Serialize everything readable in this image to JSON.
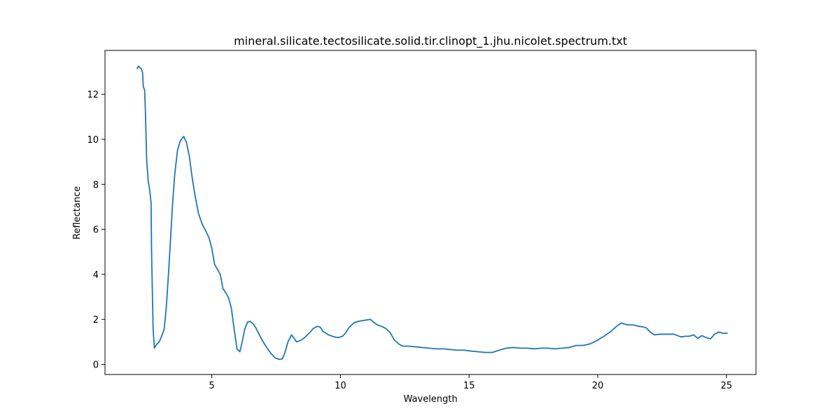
{
  "chart_data": {
    "type": "line",
    "title": "mineral.silicate.tectosilicate.solid.tir.clinopt_1.jhu.nicolet.spectrum.txt",
    "x_label": "Wavelength",
    "y_label": "Reflectance",
    "xlim": [
      0.85,
      26.15
    ],
    "ylim": [
      -0.45,
      13.95
    ],
    "xticks": [
      5,
      10,
      15,
      20,
      25
    ],
    "yticks": [
      0,
      2,
      4,
      6,
      8,
      10,
      12
    ],
    "grid": false,
    "x": [
      2.09,
      2.15,
      2.2,
      2.26,
      2.31,
      2.34,
      2.39,
      2.42,
      2.47,
      2.53,
      2.58,
      2.64,
      2.66,
      2.72,
      2.77,
      2.85,
      2.96,
      3.07,
      3.15,
      3.23,
      3.32,
      3.4,
      3.48,
      3.56,
      3.67,
      3.78,
      3.91,
      4.02,
      4.13,
      4.24,
      4.35,
      4.48,
      4.62,
      4.76,
      4.89,
      5.0,
      5.11,
      5.22,
      5.33,
      5.43,
      5.54,
      5.65,
      5.76,
      5.87,
      5.98,
      6.09,
      6.17,
      6.28,
      6.39,
      6.49,
      6.6,
      6.71,
      6.82,
      6.98,
      7.15,
      7.31,
      7.47,
      7.64,
      7.74,
      7.83,
      7.96,
      8.1,
      8.18,
      8.29,
      8.45,
      8.61,
      8.78,
      8.94,
      9.1,
      9.21,
      9.32,
      9.54,
      9.76,
      9.92,
      10.08,
      10.19,
      10.35,
      10.52,
      10.68,
      10.84,
      11.01,
      11.17,
      11.28,
      11.44,
      11.6,
      11.77,
      11.93,
      12.09,
      12.26,
      12.42,
      12.64,
      12.91,
      13.18,
      13.45,
      13.72,
      14.0,
      14.27,
      14.54,
      14.81,
      15.08,
      15.35,
      15.63,
      15.9,
      16.17,
      16.44,
      16.71,
      16.98,
      17.26,
      17.53,
      17.8,
      18.07,
      18.34,
      18.61,
      18.89,
      19.16,
      19.43,
      19.7,
      19.97,
      20.24,
      20.52,
      20.73,
      20.92,
      21.06,
      21.22,
      21.39,
      21.6,
      21.77,
      21.88,
      22.04,
      22.2,
      22.42,
      22.69,
      22.96,
      23.23,
      23.4,
      23.56,
      23.72,
      23.89,
      24.05,
      24.21,
      24.38,
      24.54,
      24.7,
      24.86,
      25.05
    ],
    "series": [
      {
        "name": "spectrum",
        "color": "#1f77b4",
        "values": [
          13.13,
          13.25,
          13.2,
          13.13,
          12.97,
          12.34,
          12.19,
          11.25,
          9.06,
          8.13,
          7.81,
          7.19,
          5.0,
          1.56,
          0.72,
          0.88,
          1.0,
          1.31,
          1.56,
          2.5,
          4.06,
          5.63,
          7.19,
          8.44,
          9.53,
          9.94,
          10.13,
          9.84,
          9.22,
          8.28,
          7.5,
          6.72,
          6.25,
          5.94,
          5.63,
          5.16,
          4.44,
          4.22,
          4.0,
          3.38,
          3.19,
          2.97,
          2.5,
          1.56,
          0.69,
          0.56,
          0.94,
          1.56,
          1.88,
          1.91,
          1.81,
          1.63,
          1.38,
          1.03,
          0.72,
          0.47,
          0.28,
          0.22,
          0.25,
          0.47,
          1.0,
          1.31,
          1.19,
          1.0,
          1.06,
          1.19,
          1.38,
          1.59,
          1.69,
          1.66,
          1.47,
          1.31,
          1.22,
          1.19,
          1.25,
          1.38,
          1.66,
          1.84,
          1.91,
          1.94,
          1.97,
          2.0,
          1.88,
          1.75,
          1.69,
          1.59,
          1.41,
          1.09,
          0.91,
          0.81,
          0.81,
          0.78,
          0.75,
          0.72,
          0.69,
          0.69,
          0.66,
          0.63,
          0.63,
          0.59,
          0.56,
          0.53,
          0.53,
          0.63,
          0.72,
          0.75,
          0.72,
          0.72,
          0.69,
          0.72,
          0.72,
          0.69,
          0.72,
          0.75,
          0.84,
          0.84,
          0.91,
          1.06,
          1.25,
          1.47,
          1.69,
          1.84,
          1.78,
          1.75,
          1.75,
          1.69,
          1.66,
          1.63,
          1.44,
          1.31,
          1.34,
          1.34,
          1.34,
          1.22,
          1.25,
          1.25,
          1.31,
          1.16,
          1.28,
          1.19,
          1.13,
          1.34,
          1.44,
          1.38,
          1.38
        ]
      }
    ]
  }
}
